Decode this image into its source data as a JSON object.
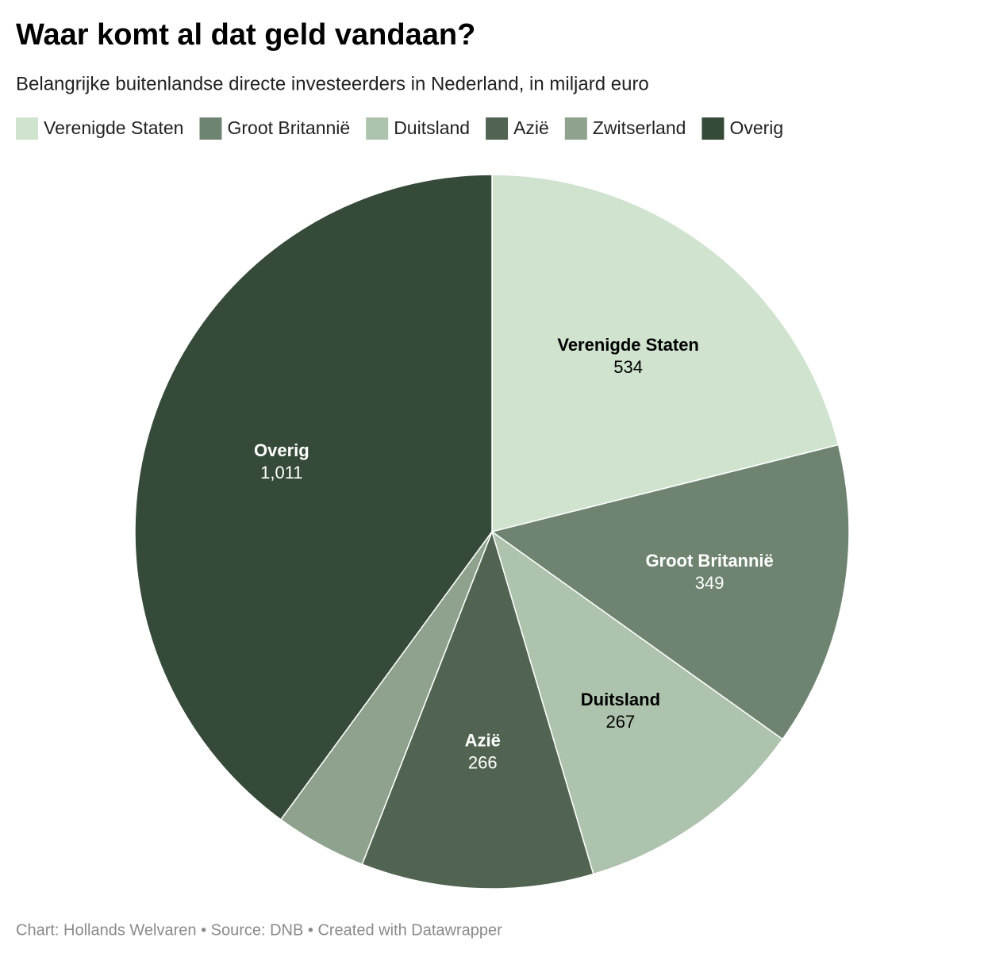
{
  "chart_data": {
    "type": "pie",
    "title": "Waar komt al dat geld vandaan?",
    "subtitle": "Belangrijke buitenlandse directe investeerders in Nederland, in miljard euro",
    "categories": [
      "Verenigde Staten",
      "Groot Britannië",
      "Duitsland",
      "Azië",
      "Zwitserland",
      "Overig"
    ],
    "values": [
      534,
      349,
      267,
      266,
      105,
      1011
    ],
    "value_labels": [
      "534",
      "349",
      "267",
      "266",
      null,
      "1,011"
    ],
    "colors": [
      "#cfe3cf",
      "#6e8471",
      "#adc3ad",
      "#516451",
      "#8ea28e",
      "#364a39"
    ],
    "footer": "Chart: Hollands Welvaren • Source: DNB • Created with Datawrapper"
  }
}
